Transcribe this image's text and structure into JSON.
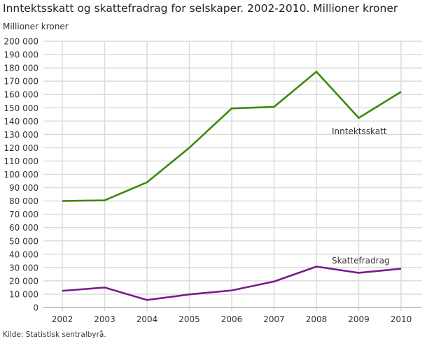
{
  "title": "Inntektsskatt og skattefradrag for selskaper. 2002-2010. Millioner kroner",
  "source": "Kilde: Statistisk sentralbyrå.",
  "chart_data": {
    "type": "line",
    "title": "Inntektsskatt og skattefradrag for selskaper. 2002-2010. Millioner kroner",
    "ylabel": "Millioner kroner",
    "xlabel": "",
    "x": [
      "2002",
      "2003",
      "2004",
      "2005",
      "2006",
      "2007",
      "2008",
      "2009",
      "2010"
    ],
    "ylim": [
      0,
      200000
    ],
    "ytick_step": 10000,
    "yticks": [
      "0",
      "10 000",
      "20 000",
      "30 000",
      "40 000",
      "50 000",
      "60 000",
      "70 000",
      "80 000",
      "90 000",
      "100 000",
      "110 000",
      "120 000",
      "130 000",
      "140 000",
      "150 000",
      "160 000",
      "170 000",
      "180 000",
      "190 000",
      "200 000"
    ],
    "grid": true,
    "series": [
      {
        "name": "Inntektsskatt",
        "color": "#3a8a0a",
        "values": [
          80000,
          80500,
          94000,
          120000,
          149500,
          150700,
          177100,
          142400,
          162000
        ]
      },
      {
        "name": "Skattefradrag",
        "color": "#7b1a8f",
        "values": [
          12500,
          15000,
          5600,
          9800,
          12800,
          19500,
          30700,
          26000,
          29100
        ]
      }
    ]
  }
}
